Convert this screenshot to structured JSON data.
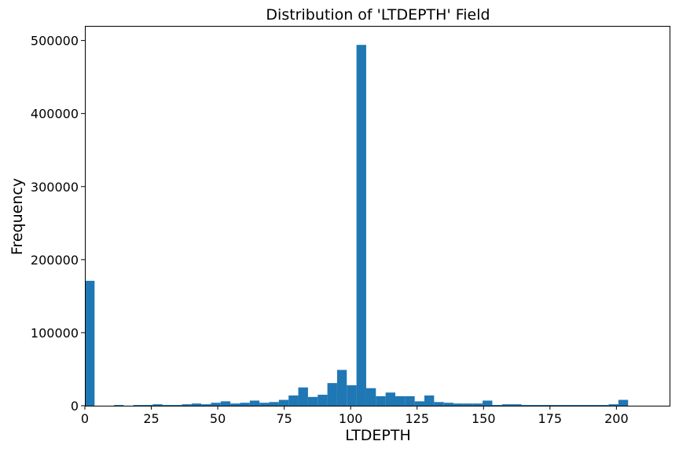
{
  "chart_data": {
    "type": "bar",
    "title": "Distribution of 'LTDEPTH' Field",
    "xlabel": "LTDEPTH",
    "ylabel": "Frequency",
    "xlim": [
      0,
      220
    ],
    "ylim": [
      0,
      520000
    ],
    "x_ticks": [
      "0",
      "25",
      "50",
      "75",
      "100",
      "125",
      "150",
      "175",
      "200"
    ],
    "y_ticks": [
      "0",
      "100000",
      "200000",
      "300000",
      "400000",
      "500000"
    ],
    "bin_width": 3.65,
    "bar_color": "#1f77b4",
    "bins_start": [
      0,
      3.65,
      7.3,
      10.95,
      14.6,
      18.25,
      21.9,
      25.55,
      29.2,
      32.85,
      36.5,
      40.15,
      43.8,
      47.45,
      51.1,
      54.75,
      58.4,
      62.05,
      65.7,
      69.35,
      73.0,
      76.65,
      80.3,
      83.95,
      87.6,
      91.25,
      94.9,
      98.55,
      102.2,
      105.85,
      109.5,
      113.15,
      116.8,
      120.45,
      124.1,
      127.75,
      131.4,
      135.05,
      138.7,
      142.35,
      146.0,
      149.65,
      153.3,
      156.95,
      160.6,
      164.25,
      167.9,
      171.55,
      175.2,
      178.85,
      182.5,
      186.15,
      189.8,
      193.45,
      197.1,
      200.75
    ],
    "values": [
      171000,
      0,
      0,
      1000,
      0,
      1000,
      1000,
      2000,
      1000,
      1000,
      2000,
      3000,
      2000,
      4000,
      6000,
      3000,
      4000,
      7000,
      4000,
      5000,
      8000,
      14000,
      25000,
      12000,
      15000,
      31000,
      49000,
      28000,
      494000,
      24000,
      13000,
      18000,
      13000,
      13000,
      6000,
      14000,
      5000,
      4000,
      3000,
      3000,
      3000,
      7000,
      1000,
      2000,
      2000,
      1000,
      1000,
      1000,
      1000,
      1000,
      1000,
      1000,
      1000,
      1000,
      2000,
      8000
    ]
  }
}
